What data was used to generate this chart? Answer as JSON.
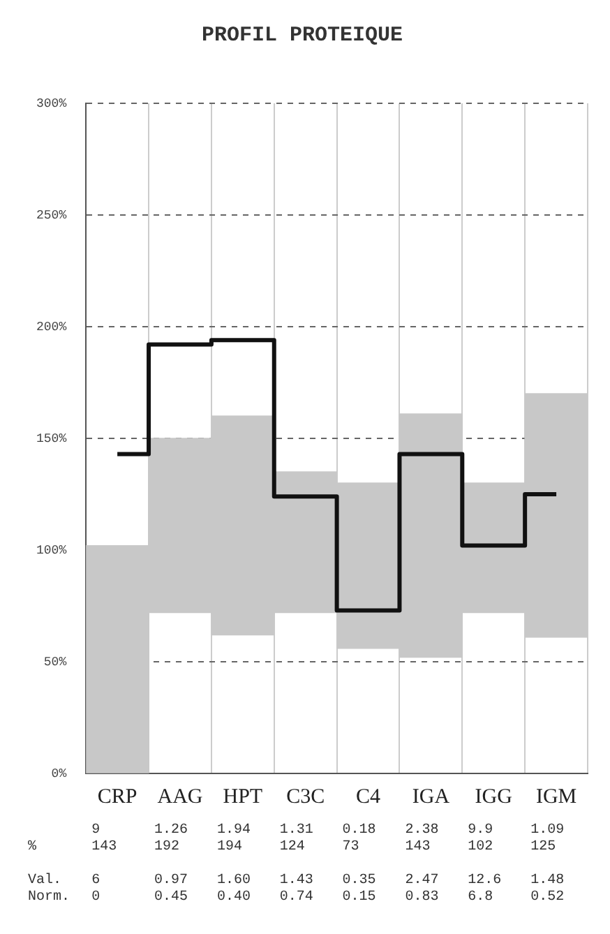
{
  "chart_data": {
    "type": "bar",
    "title": "PROFIL PROTEIQUE",
    "categories": [
      "CRP",
      "AAG",
      "HPT",
      "C3C",
      "C4",
      "IGA",
      "IGG",
      "IGM"
    ],
    "series": [
      {
        "color": "#c8c8c8",
        "base": [
          0,
          72,
          62,
          72,
          56,
          52,
          72,
          61
        ],
        "values": [
          102,
          78,
          98,
          63,
          74,
          109,
          58,
          109
        ]
      },
      {
        "type": "step",
        "name": "%",
        "color": "#111111",
        "values": [
          143,
          192,
          194,
          124,
          73,
          143,
          102,
          125
        ],
        "value_labels": [
          "143",
          "192",
          "194",
          "124",
          "73",
          "143",
          "102",
          "125"
        ]
      }
    ],
    "ylim": [
      0,
      300
    ],
    "yticks": [
      {
        "value": 0,
        "label": "0%"
      },
      {
        "value": 50,
        "label": "50%"
      },
      {
        "value": 100,
        "label": "100%"
      },
      {
        "value": 150,
        "label": "150%"
      },
      {
        "value": 200,
        "label": "200%"
      },
      {
        "value": 250,
        "label": "250%"
      },
      {
        "value": 300,
        "label": "300%"
      }
    ],
    "grid": true,
    "marker": "none",
    "annotations": [
      "9 1.26 1.94 1.31 0.18 2.38 9.9 1.09",
      "Val. 6 0.97 1.60 1.43 0.35 2.47 12.6 1.48",
      "Norm. 0 0.45 0.40 0.74 0.15 0.83 6.8 0.52"
    ]
  }
}
